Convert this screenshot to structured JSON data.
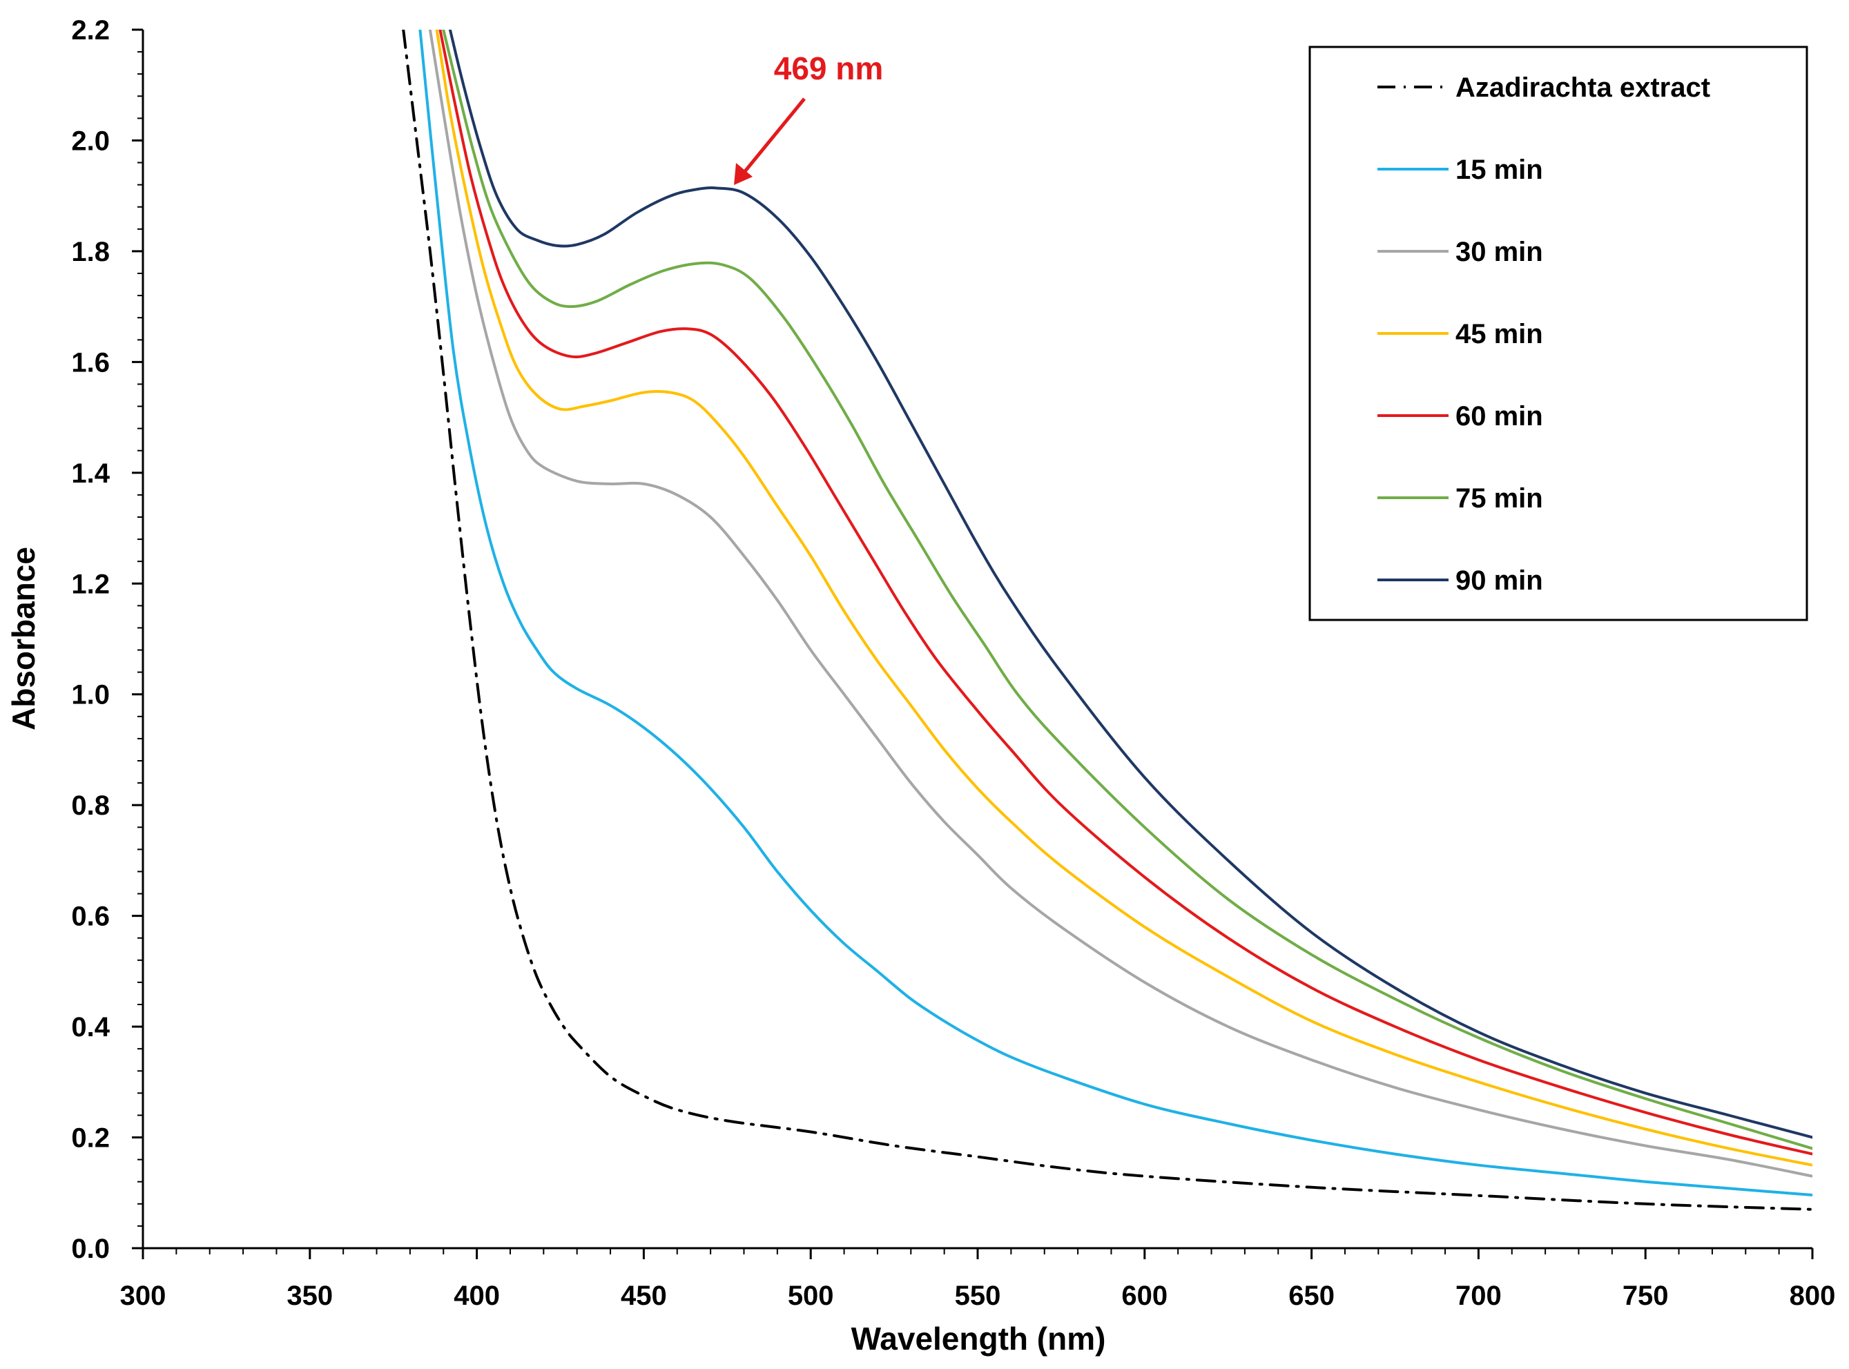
{
  "chart_data": {
    "type": "line",
    "title": "",
    "xlabel": "Wavelength (nm)",
    "ylabel": "Absorbance",
    "xlim": [
      300,
      800
    ],
    "ylim": [
      0.0,
      2.2
    ],
    "xticks": [
      "300",
      "350",
      "400",
      "450",
      "500",
      "550",
      "600",
      "650",
      "700",
      "750",
      "800"
    ],
    "yticks": [
      "0.0",
      "0.2",
      "0.4",
      "0.6",
      "0.8",
      "1.0",
      "1.2",
      "1.4",
      "1.6",
      "1.8",
      "2.0",
      "2.2"
    ],
    "grid": false,
    "legend_position": "top-right",
    "annotation": {
      "text": "469 nm",
      "color": "#e31a1c",
      "x": 469,
      "y": 1.91
    },
    "series": [
      {
        "name": "Azadirachta extract",
        "color": "#000000",
        "style": "dashdot",
        "x": [
          378,
          382,
          386,
          390,
          394,
          398,
          402,
          406,
          410,
          414,
          418,
          422,
          426,
          430,
          440,
          450,
          460,
          475,
          500,
          525,
          550,
          575,
          600,
          650,
          700,
          750,
          800
        ],
        "y": [
          2.2,
          2.0,
          1.8,
          1.58,
          1.35,
          1.13,
          0.93,
          0.77,
          0.65,
          0.56,
          0.49,
          0.44,
          0.4,
          0.37,
          0.31,
          0.275,
          0.25,
          0.23,
          0.21,
          0.185,
          0.165,
          0.145,
          0.13,
          0.11,
          0.095,
          0.08,
          0.07
        ]
      },
      {
        "name": "15 min",
        "color": "#1fb1e6",
        "style": "solid",
        "x": [
          383,
          388,
          393,
          398,
          403,
          408,
          413,
          418,
          423,
          430,
          440,
          450,
          460,
          470,
          480,
          490,
          500,
          510,
          520,
          530,
          540,
          550,
          560,
          575,
          600,
          625,
          650,
          675,
          700,
          725,
          750,
          775,
          800
        ],
        "y": [
          2.2,
          1.9,
          1.62,
          1.44,
          1.3,
          1.2,
          1.13,
          1.08,
          1.04,
          1.01,
          0.98,
          0.94,
          0.89,
          0.83,
          0.76,
          0.68,
          0.61,
          0.55,
          0.5,
          0.45,
          0.41,
          0.375,
          0.345,
          0.31,
          0.26,
          0.225,
          0.195,
          0.17,
          0.15,
          0.135,
          0.12,
          0.108,
          0.096
        ]
      },
      {
        "name": "30 min",
        "color": "#a6a6a6",
        "style": "solid",
        "x": [
          386,
          390,
          395,
          400,
          405,
          410,
          415,
          420,
          430,
          440,
          450,
          460,
          470,
          480,
          490,
          500,
          510,
          520,
          530,
          540,
          550,
          560,
          575,
          600,
          625,
          650,
          675,
          700,
          725,
          750,
          775,
          800
        ],
        "y": [
          2.2,
          2.05,
          1.87,
          1.72,
          1.6,
          1.5,
          1.44,
          1.41,
          1.385,
          1.38,
          1.38,
          1.36,
          1.32,
          1.25,
          1.17,
          1.08,
          1.0,
          0.92,
          0.84,
          0.77,
          0.71,
          0.65,
          0.58,
          0.48,
          0.4,
          0.34,
          0.29,
          0.25,
          0.215,
          0.185,
          0.16,
          0.13
        ]
      },
      {
        "name": "45 min",
        "color": "#ffc000",
        "style": "solid",
        "x": [
          388,
          392,
          397,
          402,
          407,
          412,
          418,
          425,
          432,
          440,
          450,
          458,
          465,
          472,
          480,
          490,
          500,
          510,
          520,
          530,
          540,
          550,
          560,
          575,
          600,
          625,
          650,
          675,
          700,
          725,
          750,
          775,
          800
        ],
        "y": [
          2.2,
          2.05,
          1.9,
          1.77,
          1.67,
          1.59,
          1.54,
          1.515,
          1.52,
          1.53,
          1.545,
          1.545,
          1.53,
          1.49,
          1.43,
          1.34,
          1.25,
          1.15,
          1.06,
          0.98,
          0.9,
          0.83,
          0.77,
          0.69,
          0.58,
          0.49,
          0.41,
          0.35,
          0.3,
          0.255,
          0.215,
          0.18,
          0.15
        ]
      },
      {
        "name": "60 min",
        "color": "#e31a1c",
        "style": "solid",
        "x": [
          389,
          393,
          398,
          403,
          408,
          414,
          420,
          428,
          435,
          445,
          455,
          463,
          470,
          478,
          488,
          498,
          508,
          518,
          528,
          538,
          550,
          560,
          575,
          600,
          625,
          650,
          675,
          700,
          725,
          750,
          775,
          800
        ],
        "y": [
          2.2,
          2.08,
          1.94,
          1.83,
          1.74,
          1.67,
          1.63,
          1.61,
          1.615,
          1.635,
          1.655,
          1.66,
          1.65,
          1.61,
          1.54,
          1.45,
          1.35,
          1.25,
          1.15,
          1.06,
          0.97,
          0.9,
          0.8,
          0.67,
          0.56,
          0.47,
          0.4,
          0.34,
          0.29,
          0.245,
          0.205,
          0.17
        ]
      },
      {
        "name": "75 min",
        "color": "#70ad47",
        "style": "solid",
        "x": [
          390,
          394,
          399,
          404,
          410,
          416,
          422,
          428,
          436,
          446,
          456,
          466,
          474,
          482,
          492,
          502,
          512,
          522,
          532,
          542,
          552,
          562,
          575,
          600,
          625,
          650,
          675,
          700,
          725,
          750,
          775,
          800
        ],
        "y": [
          2.2,
          2.1,
          1.98,
          1.88,
          1.8,
          1.74,
          1.71,
          1.7,
          1.71,
          1.74,
          1.765,
          1.778,
          1.775,
          1.75,
          1.68,
          1.59,
          1.49,
          1.38,
          1.28,
          1.18,
          1.09,
          1.0,
          0.91,
          0.76,
          0.63,
          0.53,
          0.45,
          0.38,
          0.32,
          0.27,
          0.225,
          0.18
        ]
      },
      {
        "name": "90 min",
        "color": "#1f3864",
        "style": "solid",
        "x": [
          392,
          396,
          401,
          406,
          412,
          418,
          424,
          430,
          438,
          448,
          458,
          466,
          472,
          480,
          490,
          500,
          510,
          520,
          530,
          540,
          550,
          560,
          575,
          600,
          625,
          650,
          675,
          700,
          725,
          750,
          775,
          800
        ],
        "y": [
          2.2,
          2.1,
          1.99,
          1.9,
          1.84,
          1.82,
          1.81,
          1.812,
          1.83,
          1.87,
          1.9,
          1.912,
          1.914,
          1.905,
          1.86,
          1.79,
          1.7,
          1.6,
          1.49,
          1.38,
          1.27,
          1.17,
          1.04,
          0.85,
          0.7,
          0.57,
          0.47,
          0.39,
          0.33,
          0.28,
          0.24,
          0.2
        ]
      }
    ]
  }
}
